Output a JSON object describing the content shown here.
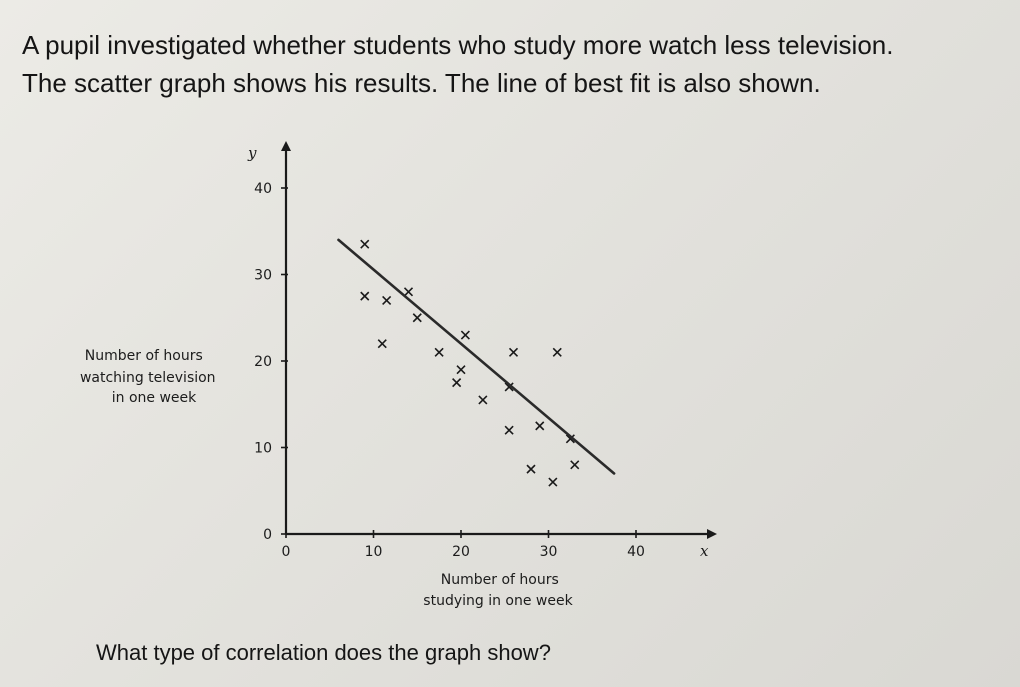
{
  "question": {
    "line1": "A pupil investigated whether students who study more watch less television.",
    "line2": "The scatter graph shows his results. The line of best ﬁt is also shown."
  },
  "prompt": "What type of correlation does the graph show?",
  "chart_data": {
    "type": "scatter",
    "x_var": "x",
    "y_var": "y",
    "xlabel": [
      "Number of hours",
      "studying in one week"
    ],
    "ylabel": [
      "Number of hours",
      "watching television",
      "in one week"
    ],
    "xlim": [
      0,
      45
    ],
    "ylim": [
      0,
      44
    ],
    "x_ticks": [
      0,
      10,
      20,
      30,
      40
    ],
    "y_ticks": [
      0,
      10,
      20,
      30,
      40
    ],
    "grid": false,
    "points": [
      {
        "x": 9,
        "y": 33.5
      },
      {
        "x": 9,
        "y": 27.5
      },
      {
        "x": 11.5,
        "y": 27
      },
      {
        "x": 14,
        "y": 28
      },
      {
        "x": 15,
        "y": 25
      },
      {
        "x": 11,
        "y": 22
      },
      {
        "x": 17.5,
        "y": 21
      },
      {
        "x": 20.5,
        "y": 23
      },
      {
        "x": 20,
        "y": 19
      },
      {
        "x": 19.5,
        "y": 17.5
      },
      {
        "x": 26,
        "y": 21
      },
      {
        "x": 31,
        "y": 21
      },
      {
        "x": 22.5,
        "y": 15.5
      },
      {
        "x": 25.5,
        "y": 17
      },
      {
        "x": 25.5,
        "y": 12
      },
      {
        "x": 29,
        "y": 12.5
      },
      {
        "x": 32.5,
        "y": 11
      },
      {
        "x": 28,
        "y": 7.5
      },
      {
        "x": 30.5,
        "y": 6
      },
      {
        "x": 33,
        "y": 8
      }
    ],
    "best_fit_line": {
      "x": [
        6,
        37.5
      ],
      "y": [
        34,
        7
      ]
    }
  }
}
